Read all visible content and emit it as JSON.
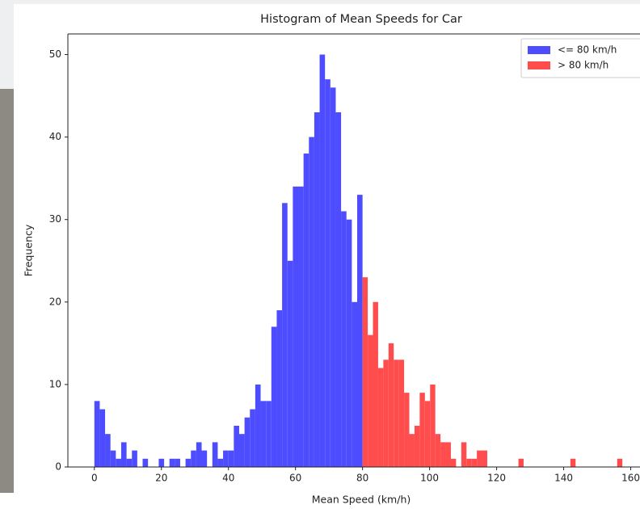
{
  "chart_data": {
    "type": "histogram",
    "title": "Histogram of Mean Speeds for Car",
    "x_label": "Mean Speed (km/h)",
    "y_label": "Frequency",
    "series": [
      {
        "name": "<= 80 km/h",
        "color": "#4d4dff",
        "bins": [
          0,
          1.6,
          3.2,
          4.8,
          6.4,
          8,
          9.6,
          11.2,
          12.8,
          14.4,
          16,
          17.6,
          19.2,
          20.8,
          22.4,
          24,
          25.6,
          27.2,
          28.8,
          30.4,
          32,
          33.6,
          35.2,
          36.8,
          38.4,
          40,
          41.6,
          43.2,
          44.8,
          46.4,
          48,
          49.6,
          51.2,
          52.8,
          54.4,
          56,
          57.6,
          59.2,
          60.8,
          62.4,
          64,
          65.6,
          67.2,
          68.8,
          70.4,
          72,
          73.6,
          75.2,
          76.8,
          78.4,
          80
        ],
        "values": [
          8,
          7,
          4,
          2,
          1,
          3,
          1,
          2,
          0,
          1,
          0,
          0,
          1,
          0,
          1,
          1,
          0,
          1,
          2,
          3,
          2,
          0,
          3,
          1,
          2,
          2,
          5,
          4,
          6,
          7,
          10,
          8,
          8,
          17,
          19,
          32,
          25,
          34,
          34,
          38,
          40,
          43,
          50,
          47,
          46,
          43,
          31,
          30,
          20,
          33
        ]
      },
      {
        "name": "> 80 km/h",
        "color": "#ff4d4d",
        "bins": [
          80,
          81.55,
          83.1,
          84.65,
          86.2,
          87.75,
          89.3,
          90.85,
          92.4,
          93.95,
          95.5,
          97.05,
          98.6,
          100.15,
          101.7,
          103.25,
          104.8,
          106.35,
          107.9,
          109.45,
          111,
          112.55,
          114.1,
          115.65,
          117.2,
          118.75,
          120.3,
          121.85,
          123.4,
          124.95,
          126.5,
          128.05,
          129.6,
          131.15,
          132.7,
          134.25,
          135.8,
          137.35,
          138.9,
          140.45,
          142,
          143.55,
          145.1,
          146.65,
          148.2,
          149.75,
          151.3,
          152.85,
          154.4,
          155.95,
          157.5
        ],
        "values": [
          23,
          16,
          20,
          12,
          13,
          15,
          13,
          13,
          9,
          4,
          5,
          9,
          8,
          10,
          4,
          3,
          3,
          1,
          0,
          3,
          1,
          1,
          2,
          2,
          0,
          0,
          0,
          0,
          0,
          0,
          1,
          0,
          0,
          0,
          0,
          0,
          0,
          0,
          0,
          0,
          1,
          0,
          0,
          0,
          0,
          0,
          0,
          0,
          0,
          1
        ]
      }
    ],
    "xlim": [
      -7.9,
      165.9
    ],
    "xticks": [
      0,
      20,
      40,
      60,
      80,
      100,
      120,
      140,
      160
    ],
    "ylim": [
      0,
      52.5
    ],
    "yticks": [
      0,
      10,
      20,
      30,
      40,
      50
    ],
    "legend": "upper right"
  }
}
